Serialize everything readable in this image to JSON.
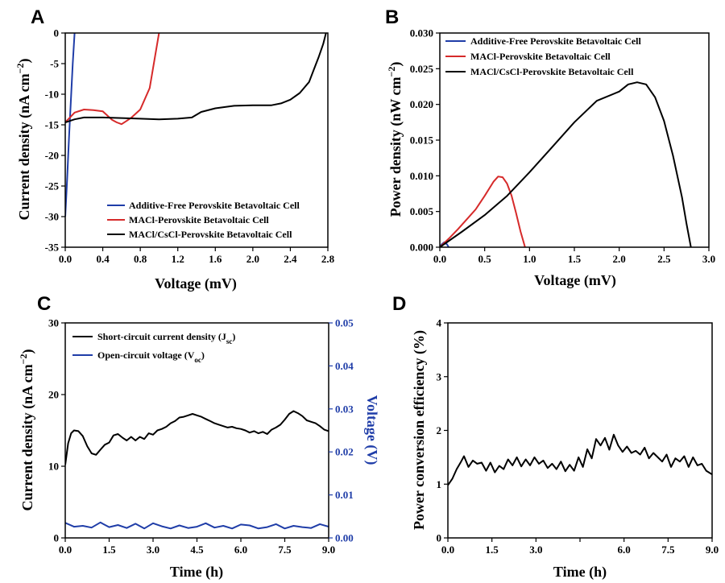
{
  "chart_data": [
    {
      "panel": "A",
      "type": "line",
      "xlabel": "Voltage (mV)",
      "ylabel": "Current density (nA cm",
      "ylabel_sup": "−2",
      "ylabel_close": ")",
      "xlim": [
        0,
        2.8
      ],
      "ylim": [
        -35,
        0
      ],
      "xticks": [
        "0.0",
        "0.4",
        "0.8",
        "1.2",
        "1.6",
        "2.0",
        "2.4",
        "2.8"
      ],
      "xtick_values": [
        0,
        0.4,
        0.8,
        1.2,
        1.6,
        2.0,
        2.4,
        2.8
      ],
      "yticks": [
        "0",
        "-5",
        "-10",
        "-15",
        "-20",
        "-25",
        "-30",
        "-35"
      ],
      "ytick_values": [
        0,
        -5,
        -10,
        -15,
        -20,
        -25,
        -30,
        -35
      ],
      "legend_position": "bottom-right",
      "series": [
        {
          "name": "Additive-Free Perovskite Betavoltaic Cell",
          "color": "#1f3da8",
          "x": [
            0.0,
            0.02,
            0.04,
            0.06,
            0.08,
            0.1
          ],
          "y": [
            -30,
            -24,
            -17,
            -11,
            -5,
            0
          ]
        },
        {
          "name": "MACl-Perovskite Betavoltaic Cell",
          "color": "#d62a2a",
          "x": [
            0.0,
            0.05,
            0.1,
            0.2,
            0.3,
            0.4,
            0.45,
            0.5,
            0.55,
            0.6,
            0.65,
            0.7,
            0.8,
            0.9,
            0.95,
            1.0
          ],
          "y": [
            -14.6,
            -13.8,
            -13.0,
            -12.5,
            -12.6,
            -12.8,
            -13.5,
            -14.2,
            -14.6,
            -14.9,
            -14.4,
            -13.9,
            -12.5,
            -9,
            -4.5,
            0
          ]
        },
        {
          "name": "MACl/CsCl-Perovskite Betavoltaic Cell",
          "color": "#000000",
          "x": [
            0.0,
            0.1,
            0.2,
            0.4,
            0.6,
            0.8,
            1.0,
            1.2,
            1.35,
            1.45,
            1.6,
            1.8,
            2.0,
            2.2,
            2.3,
            2.4,
            2.5,
            2.6,
            2.65,
            2.7,
            2.75,
            2.78
          ],
          "y": [
            -14.6,
            -14.1,
            -13.8,
            -13.8,
            -13.9,
            -14.0,
            -14.1,
            -14.0,
            -13.8,
            -12.9,
            -12.3,
            -11.9,
            -11.8,
            -11.8,
            -11.5,
            -10.9,
            -9.8,
            -8.0,
            -6.0,
            -4.0,
            -1.8,
            0
          ]
        }
      ]
    },
    {
      "panel": "B",
      "type": "line",
      "xlabel": "Voltage (mV)",
      "ylabel": "Power density (nW cm",
      "ylabel_sup": "−2",
      "ylabel_close": ")",
      "xlim": [
        0,
        3.0
      ],
      "ylim": [
        0,
        0.03
      ],
      "xticks": [
        "0.0",
        "0.5",
        "1.0",
        "1.5",
        "2.0",
        "2.5",
        "3.0"
      ],
      "xtick_values": [
        0,
        0.5,
        1.0,
        1.5,
        2.0,
        2.5,
        3.0
      ],
      "yticks": [
        "0.000",
        "0.005",
        "0.010",
        "0.015",
        "0.020",
        "0.025",
        "0.030"
      ],
      "ytick_values": [
        0,
        0.005,
        0.01,
        0.015,
        0.02,
        0.025,
        0.03
      ],
      "legend_position": "top-right",
      "series": [
        {
          "name": "Additive-Free Perovskite Betavoltaic Cell",
          "color": "#1f3da8",
          "x": [
            0.0,
            0.02,
            0.05,
            0.08,
            0.1
          ],
          "y": [
            0,
            0.0004,
            0.0007,
            0.0004,
            0
          ]
        },
        {
          "name": "MACl-Perovskite Betavoltaic Cell",
          "color": "#d62a2a",
          "x": [
            0.0,
            0.1,
            0.2,
            0.3,
            0.4,
            0.5,
            0.6,
            0.65,
            0.7,
            0.75,
            0.8,
            0.85,
            0.9,
            0.95
          ],
          "y": [
            0,
            0.0012,
            0.0025,
            0.0039,
            0.0053,
            0.0072,
            0.0092,
            0.0099,
            0.0098,
            0.0089,
            0.0072,
            0.0048,
            0.0022,
            0
          ]
        },
        {
          "name": "MACl/CsCl-Perovskite Betavoltaic Cell",
          "color": "#000000",
          "x": [
            0.0,
            0.25,
            0.5,
            0.75,
            1.0,
            1.25,
            1.5,
            1.75,
            2.0,
            2.1,
            2.2,
            2.3,
            2.4,
            2.5,
            2.6,
            2.7,
            2.75,
            2.8
          ],
          "y": [
            0,
            0.0022,
            0.0045,
            0.0072,
            0.0105,
            0.014,
            0.0175,
            0.0205,
            0.0218,
            0.0228,
            0.0231,
            0.0228,
            0.021,
            0.0177,
            0.0128,
            0.007,
            0.0033,
            0
          ]
        }
      ]
    },
    {
      "panel": "C",
      "type": "line",
      "xlabel": "Time (h)",
      "ylabel": "Current density (nA cm",
      "ylabel_sup": "−2",
      "ylabel_close": ")",
      "y2label": "Voltage (V)",
      "xlim": [
        0,
        9.0
      ],
      "ylim": [
        0,
        30
      ],
      "y2lim": [
        0,
        0.05
      ],
      "xticks": [
        "0.0",
        "1.5",
        "3.0",
        "4.5",
        "6.0",
        "7.5",
        "9.0"
      ],
      "xtick_values": [
        0,
        1.5,
        3.0,
        4.5,
        6.0,
        7.5,
        9.0
      ],
      "yticks": [
        "0",
        "10",
        "20",
        "30"
      ],
      "ytick_values": [
        0,
        10,
        20,
        30
      ],
      "y2ticks": [
        "0.00",
        "0.01",
        "0.02",
        "0.03",
        "0.04",
        "0.05"
      ],
      "y2tick_values": [
        0,
        0.01,
        0.02,
        0.03,
        0.04,
        0.05
      ],
      "legend_position": "top-left",
      "series": [
        {
          "name": "Short-circuit current density (J",
          "name_sub": "sc",
          "name_close": ")",
          "color": "#000000",
          "axis": "left",
          "x": [
            0.0,
            0.1,
            0.2,
            0.3,
            0.45,
            0.6,
            0.75,
            0.9,
            1.05,
            1.2,
            1.35,
            1.5,
            1.65,
            1.8,
            1.95,
            2.1,
            2.25,
            2.4,
            2.55,
            2.7,
            2.85,
            3.0,
            3.15,
            3.3,
            3.45,
            3.6,
            3.75,
            3.9,
            4.05,
            4.2,
            4.35,
            4.5,
            4.65,
            4.8,
            4.95,
            5.1,
            5.25,
            5.4,
            5.55,
            5.7,
            5.85,
            6.0,
            6.15,
            6.3,
            6.45,
            6.6,
            6.75,
            6.9,
            7.05,
            7.2,
            7.35,
            7.5,
            7.65,
            7.8,
            7.95,
            8.1,
            8.25,
            8.4,
            8.55,
            8.7,
            8.85,
            9.0
          ],
          "y": [
            10.2,
            13.2,
            14.6,
            15.0,
            14.9,
            14.2,
            12.8,
            11.8,
            11.6,
            12.3,
            13.0,
            13.3,
            14.3,
            14.5,
            14.0,
            13.6,
            14.1,
            13.6,
            14.1,
            13.8,
            14.6,
            14.4,
            15.0,
            15.2,
            15.5,
            16.0,
            16.3,
            16.8,
            16.9,
            17.1,
            17.3,
            17.1,
            16.9,
            16.6,
            16.3,
            16.0,
            15.8,
            15.6,
            15.4,
            15.5,
            15.3,
            15.2,
            15.0,
            14.7,
            14.9,
            14.6,
            14.8,
            14.5,
            15.1,
            15.4,
            15.8,
            16.5,
            17.3,
            17.7,
            17.4,
            17.0,
            16.4,
            16.2,
            16.0,
            15.6,
            15.1,
            14.9
          ]
        },
        {
          "name": "Open-circuit voltage (V",
          "name_sub": "oc",
          "name_close": ")",
          "color": "#1f3da8",
          "axis": "right",
          "x": [
            0.0,
            0.3,
            0.6,
            0.9,
            1.2,
            1.5,
            1.8,
            2.1,
            2.4,
            2.7,
            3.0,
            3.3,
            3.6,
            3.9,
            4.2,
            4.5,
            4.8,
            5.1,
            5.4,
            5.7,
            6.0,
            6.3,
            6.6,
            6.9,
            7.2,
            7.5,
            7.8,
            8.1,
            8.4,
            8.7,
            9.0
          ],
          "y": [
            0.0035,
            0.0026,
            0.0028,
            0.0024,
            0.0036,
            0.0025,
            0.003,
            0.0023,
            0.0033,
            0.0022,
            0.0034,
            0.0027,
            0.0022,
            0.0029,
            0.0023,
            0.0026,
            0.0034,
            0.0024,
            0.0028,
            0.0022,
            0.0031,
            0.0029,
            0.0022,
            0.0025,
            0.0032,
            0.0022,
            0.0028,
            0.0025,
            0.0023,
            0.0032,
            0.0026
          ]
        }
      ]
    },
    {
      "panel": "D",
      "type": "line",
      "xlabel": "Time (h)",
      "ylabel": "Power conversion efficiency (%)",
      "xlim": [
        0,
        9.0
      ],
      "ylim": [
        0,
        4
      ],
      "xticks": [
        "0.0",
        "1.5",
        "3.0",
        "",
        "6.0",
        "7.5",
        "9.0"
      ],
      "xtick_values": [
        0,
        1.5,
        3.0,
        4.5,
        6.0,
        7.5,
        9.0
      ],
      "yticks": [
        "0",
        "1",
        "2",
        "3",
        "4"
      ],
      "ytick_values": [
        0,
        1,
        2,
        3,
        4
      ],
      "series": [
        {
          "name": "",
          "color": "#000000",
          "x": [
            0.0,
            0.15,
            0.3,
            0.45,
            0.55,
            0.7,
            0.85,
            1.0,
            1.15,
            1.3,
            1.45,
            1.6,
            1.75,
            1.9,
            2.05,
            2.2,
            2.35,
            2.5,
            2.65,
            2.8,
            2.95,
            3.1,
            3.25,
            3.4,
            3.55,
            3.7,
            3.85,
            4.0,
            4.15,
            4.3,
            4.45,
            4.6,
            4.75,
            4.9,
            5.05,
            5.2,
            5.35,
            5.5,
            5.65,
            5.8,
            5.95,
            6.1,
            6.25,
            6.4,
            6.55,
            6.7,
            6.85,
            7.0,
            7.15,
            7.3,
            7.45,
            7.6,
            7.75,
            7.9,
            8.05,
            8.2,
            8.35,
            8.5,
            8.65,
            8.8,
            9.0
          ],
          "y": [
            0.98,
            1.1,
            1.28,
            1.42,
            1.52,
            1.32,
            1.44,
            1.38,
            1.4,
            1.25,
            1.4,
            1.22,
            1.34,
            1.28,
            1.46,
            1.35,
            1.5,
            1.33,
            1.46,
            1.35,
            1.5,
            1.38,
            1.44,
            1.3,
            1.38,
            1.28,
            1.42,
            1.24,
            1.36,
            1.25,
            1.5,
            1.32,
            1.65,
            1.48,
            1.84,
            1.72,
            1.86,
            1.64,
            1.92,
            1.72,
            1.6,
            1.7,
            1.58,
            1.62,
            1.55,
            1.68,
            1.48,
            1.58,
            1.5,
            1.42,
            1.55,
            1.32,
            1.48,
            1.42,
            1.52,
            1.32,
            1.5,
            1.35,
            1.38,
            1.25,
            1.18
          ]
        }
      ]
    }
  ]
}
